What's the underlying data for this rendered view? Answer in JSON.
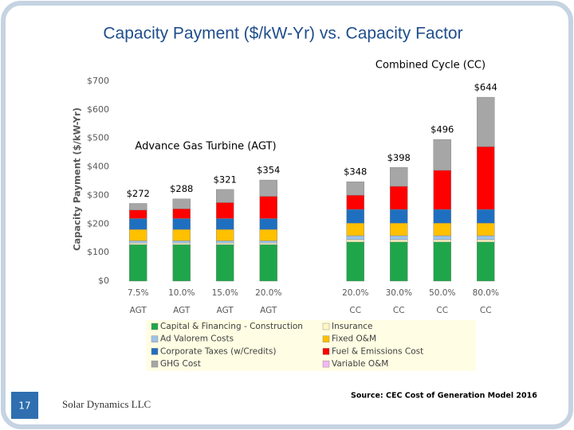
{
  "chart_data": {
    "type": "stacked_bar",
    "title": "Capacity Payment ($/kW-Yr) vs. Capacity Factor",
    "y_label": "Capacity Payment ($/kW-Yr)",
    "annotations": [
      "Combined Cycle (CC)",
      "Advance Gas Turbine (AGT)"
    ],
    "categories": [
      "7.5%",
      "10.0%",
      "15.0%",
      "20.0%",
      null,
      "20.0%",
      "30.0%",
      "50.0%",
      "80.0%"
    ],
    "category_groups": [
      "AGT",
      "AGT",
      "AGT",
      "AGT",
      null,
      "CC",
      "CC",
      "CC",
      "CC"
    ],
    "series": [
      {
        "name": "Capital & Financing - Construction",
        "color": "#1fa64a",
        "values": [
          128,
          128,
          128,
          128,
          null,
          137,
          137,
          137,
          137
        ]
      },
      {
        "name": "Insurance",
        "color": "#fff7c2",
        "values": [
          5,
          5,
          5,
          5,
          null,
          8,
          8,
          8,
          8
        ]
      },
      {
        "name": "Ad Valorem Costs",
        "color": "#9dc3e6",
        "values": [
          8,
          8,
          8,
          8,
          null,
          14,
          14,
          14,
          14
        ]
      },
      {
        "name": "Fixed O&M",
        "color": "#ffc000",
        "values": [
          40,
          40,
          40,
          40,
          null,
          44,
          44,
          44,
          44
        ]
      },
      {
        "name": "Corporate Taxes (w/Credits)",
        "color": "#1f6fc0",
        "values": [
          38,
          38,
          38,
          38,
          null,
          48,
          48,
          48,
          48
        ]
      },
      {
        "name": "Fuel & Emissions Cost",
        "color": "#ff0000",
        "values": [
          30,
          34,
          56,
          78,
          null,
          50,
          81,
          137,
          220
        ]
      },
      {
        "name": "GHG Cost",
        "color": "#a6a6a6",
        "values": [
          23,
          35,
          46,
          57,
          null,
          47,
          66,
          108,
          173
        ]
      },
      {
        "name": "Variable O&M",
        "color": "#f4b6f4",
        "values": [
          0,
          0,
          0,
          0,
          null,
          0,
          0,
          0,
          0
        ]
      }
    ],
    "totals": [
      272,
      288,
      321,
      354,
      null,
      348,
      398,
      496,
      644
    ],
    "total_labels": [
      "$272",
      "$288",
      "$321",
      "$354",
      null,
      "$348",
      "$398",
      "$496",
      "$644"
    ],
    "ylim": [
      0,
      700
    ],
    "yticks": [
      {
        "value": 0,
        "label": "$0"
      },
      {
        "value": 100,
        "label": "$100"
      },
      {
        "value": 200,
        "label": "$200"
      },
      {
        "value": 300,
        "label": "$300"
      },
      {
        "value": 400,
        "label": "$400"
      },
      {
        "value": 500,
        "label": "$500"
      },
      {
        "value": 600,
        "label": "$600"
      },
      {
        "value": 700,
        "label": "$700"
      }
    ],
    "grid": false
  },
  "slide": {
    "number": "17",
    "footer": "Solar Dynamics LLC",
    "source": "Source: CEC Cost of Generation Model 2016"
  }
}
